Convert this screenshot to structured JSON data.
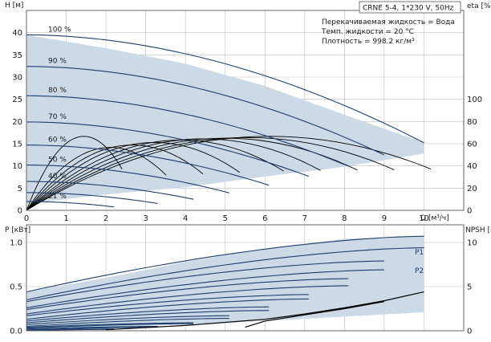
{
  "header": {
    "model": "CRNE 5-4, 1*230 V, 50Hz",
    "info_lines": [
      "Перекачиваемая жидкость = Вода",
      "Темп. жидкости = 20 °C",
      "Плотность = 998.2 кг/м³"
    ]
  },
  "colors": {
    "envelope_fill": "#ccd9e6",
    "curve": "#1f3f6e",
    "grid": "#bfbfbf",
    "axis": "#555555",
    "npsh": "#000000"
  },
  "chart_data": [
    {
      "type": "line",
      "title": "",
      "xlabel": "Q [м³/ч]",
      "ylabel": "H [м]",
      "ylabel_right": "eta [%]",
      "xlim": [
        0,
        11
      ],
      "ylim": [
        0,
        45
      ],
      "ylim_right": [
        0,
        180
      ],
      "x_ticks": [
        0,
        1,
        2,
        3,
        4,
        5,
        6,
        7,
        8,
        9,
        10
      ],
      "y_ticks": [
        0,
        5,
        10,
        15,
        20,
        25,
        30,
        35,
        40
      ],
      "y_ticks_right": [
        0,
        20,
        40,
        60,
        80,
        100
      ],
      "grid": true,
      "envelope_h": {
        "upper": [
          [
            0,
            39.5
          ],
          [
            2,
            36.5
          ],
          [
            4,
            33
          ],
          [
            6,
            28
          ],
          [
            8,
            21.5
          ],
          [
            10,
            15.2
          ]
        ],
        "lower": [
          [
            0,
            1.5
          ],
          [
            2,
            3.6
          ],
          [
            4,
            5.2
          ],
          [
            6,
            7.6
          ],
          [
            8,
            9.8
          ],
          [
            10,
            12.8
          ]
        ]
      },
      "speed_curves": [
        {
          "label": "100 %",
          "q_max": 10,
          "h0": 39.5
        },
        {
          "label": "90 %",
          "q_max": 9,
          "h0": 32.4
        },
        {
          "label": "80 %",
          "q_max": 8.1,
          "h0": 25.8
        },
        {
          "label": "70 %",
          "q_max": 7.1,
          "h0": 19.9
        },
        {
          "label": "60 %",
          "q_max": 6.1,
          "h0": 14.7
        },
        {
          "label": "50 %",
          "q_max": 5.1,
          "h0": 10.2
        },
        {
          "label": "40 %",
          "q_max": 4.2,
          "h0": 6.5
        },
        {
          "label": "",
          "q_max": 3.3,
          "h0": 4.0
        },
        {
          "label": "21 %",
          "q_max": 2.2,
          "h0": 2.0
        }
      ],
      "eta_curves": [
        {
          "speed_pct": 100,
          "q_best": 5.5,
          "eta_max": 60
        },
        {
          "speed_pct": 90,
          "q_best": 5.0,
          "eta_max": 59
        },
        {
          "speed_pct": 80,
          "q_best": 4.5,
          "eta_max": 58.5
        },
        {
          "speed_pct": 70,
          "q_best": 4.0,
          "eta_max": 58
        },
        {
          "speed_pct": 60,
          "q_best": 3.5,
          "eta_max": 57
        },
        {
          "speed_pct": 50,
          "q_best": 2.9,
          "eta_max": 55
        },
        {
          "speed_pct": 40,
          "q_best": 2.4,
          "eta_max": 53
        },
        {
          "speed_pct": 30,
          "q_best": 1.9,
          "eta_max": 51
        },
        {
          "speed_pct": 21,
          "q_best": 1.3,
          "eta_max": 60
        }
      ]
    },
    {
      "type": "line",
      "title": "",
      "xlabel": "",
      "ylabel": "P [кВт]",
      "ylabel_right": "NPSH [м]",
      "xlim": [
        0,
        11
      ],
      "ylim": [
        0,
        1.2
      ],
      "ylim_right": [
        0,
        12
      ],
      "y_ticks": [
        0.0,
        0.5,
        1.0
      ],
      "y_ticks_right": [
        0,
        5,
        10
      ],
      "grid": true,
      "series_labels": [
        "P1",
        "P2"
      ],
      "envelope_p": {
        "upper": [
          [
            0,
            0.44
          ],
          [
            2,
            0.6
          ],
          [
            4,
            0.78
          ],
          [
            6,
            0.93
          ],
          [
            8,
            1.04
          ],
          [
            10,
            1.07
          ]
        ],
        "lower": [
          [
            0,
            0.02
          ],
          [
            2,
            0.04
          ],
          [
            4,
            0.07
          ],
          [
            6,
            0.11
          ],
          [
            8,
            0.16
          ],
          [
            10,
            0.21
          ]
        ]
      },
      "p1_curves": [
        {
          "speed_pct": 100,
          "q_max": 10,
          "p0": 0.44,
          "p_end": 1.07
        },
        {
          "speed_pct": 90,
          "q_max": 9,
          "p0": 0.33,
          "p_end": 0.79
        },
        {
          "speed_pct": 80,
          "q_max": 8.1,
          "p0": 0.24,
          "p_end": 0.59
        },
        {
          "speed_pct": 70,
          "q_max": 7.1,
          "p0": 0.17,
          "p_end": 0.41
        },
        {
          "speed_pct": 60,
          "q_max": 6.1,
          "p0": 0.11,
          "p_end": 0.27
        },
        {
          "speed_pct": 50,
          "q_max": 5.1,
          "p0": 0.07,
          "p_end": 0.17
        },
        {
          "speed_pct": 40,
          "q_max": 4.2,
          "p0": 0.04,
          "p_end": 0.09
        },
        {
          "speed_pct": 30,
          "q_max": 3.3,
          "p0": 0.02,
          "p_end": 0.05
        },
        {
          "speed_pct": 21,
          "q_max": 2.2,
          "p0": 0.01,
          "p_end": 0.02
        }
      ],
      "p2_curves": [
        {
          "speed_pct": 100,
          "q_max": 10,
          "p0": 0.35,
          "p_end": 0.94
        },
        {
          "speed_pct": 90,
          "q_max": 9,
          "p0": 0.26,
          "p_end": 0.69
        },
        {
          "speed_pct": 80,
          "q_max": 8.1,
          "p0": 0.19,
          "p_end": 0.51
        },
        {
          "speed_pct": 70,
          "q_max": 7.1,
          "p0": 0.13,
          "p_end": 0.36
        },
        {
          "speed_pct": 60,
          "q_max": 6.1,
          "p0": 0.09,
          "p_end": 0.23
        },
        {
          "speed_pct": 50,
          "q_max": 5.1,
          "p0": 0.05,
          "p_end": 0.14
        },
        {
          "speed_pct": 40,
          "q_max": 4.2,
          "p0": 0.03,
          "p_end": 0.08
        },
        {
          "speed_pct": 30,
          "q_max": 3.3,
          "p0": 0.01,
          "p_end": 0.04
        },
        {
          "speed_pct": 21,
          "q_max": 2.2,
          "p0": 0.005,
          "p_end": 0.015
        }
      ],
      "npsh": [
        [
          2,
          0.12
        ],
        [
          4,
          0.6
        ],
        [
          6,
          1.3
        ],
        [
          7,
          1.9
        ],
        [
          8,
          2.6
        ],
        [
          9,
          3.4
        ],
        [
          10,
          4.4
        ]
      ],
      "npsh_short": [
        [
          5.5,
          0.4
        ],
        [
          6,
          1.1
        ],
        [
          7,
          1.8
        ],
        [
          8,
          2.5
        ],
        [
          9,
          3.3
        ]
      ]
    }
  ]
}
